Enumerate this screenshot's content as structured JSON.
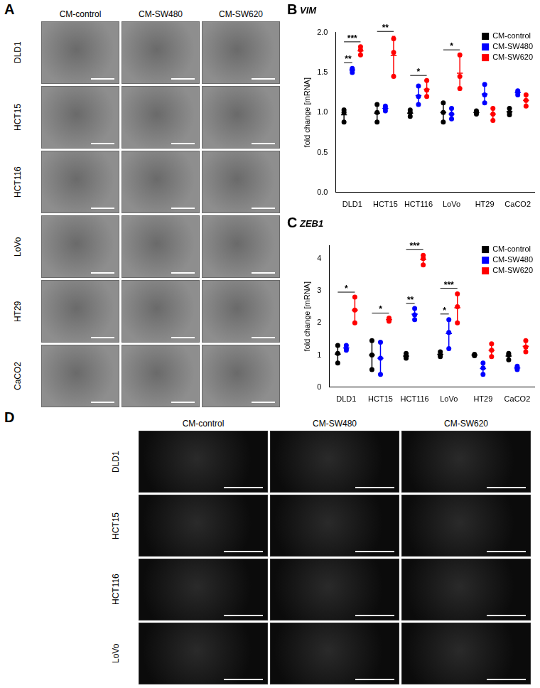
{
  "image_panels": [
    {
      "panel": "A",
      "columns": [
        "CM-control",
        "CM-SW480",
        "CM-SW620"
      ],
      "rows": [
        "DLD1",
        "HCT15",
        "HCT116",
        "LoVo",
        "HT29",
        "CaCO2"
      ]
    },
    {
      "panel": "D",
      "columns": [
        "CM-control",
        "CM-SW480",
        "CM-SW620"
      ],
      "rows": [
        "DLD1",
        "HCT15",
        "HCT116",
        "LoVo"
      ]
    }
  ],
  "chart_data": [
    {
      "panel": "B",
      "type": "scatter",
      "title": "VIM",
      "y_label": "fold change [mRNA]",
      "categories": [
        "DLD1",
        "HCT15",
        "HCT116",
        "LoVo",
        "HT29",
        "CaCO2"
      ],
      "ylim": [
        0,
        2.0
      ],
      "yticks": [
        {
          "value": 0,
          "label": "0.0"
        },
        0.5,
        {
          "value": 1,
          "label": "1.0"
        },
        1.5,
        {
          "value": 2,
          "label": "2.0"
        }
      ],
      "grid": false,
      "legend": "upper right",
      "marker": "circle",
      "series": [
        {
          "name": "CM-control",
          "color": "#000000",
          "values": [
            [
              0.88,
              1.0,
              1.03
            ],
            [
              0.88,
              1.0,
              1.1
            ],
            [
              0.95,
              1.0,
              1.03
            ],
            [
              0.88,
              1.0,
              1.12
            ],
            [
              0.98,
              1.0,
              1.02
            ],
            [
              0.97,
              1.0,
              1.05
            ]
          ],
          "mean": [
            0.97,
            0.99,
            0.99,
            1.0,
            1.0,
            1.01
          ],
          "sd": [
            0.08,
            0.11,
            0.04,
            0.12,
            0.02,
            0.04
          ]
        },
        {
          "name": "CM-SW480",
          "color": "#0000ff",
          "values": [
            [
              1.5,
              1.53,
              1.55
            ],
            [
              1.02,
              1.05,
              1.08
            ],
            [
              1.1,
              1.2,
              1.33
            ],
            [
              0.92,
              0.98,
              1.05
            ],
            [
              1.12,
              1.22,
              1.35
            ],
            [
              1.22,
              1.25,
              1.27
            ]
          ],
          "mean": [
            1.53,
            1.05,
            1.21,
            0.98,
            1.23,
            1.25
          ],
          "sd": [
            0.03,
            0.03,
            0.12,
            0.07,
            0.12,
            0.03
          ]
        },
        {
          "name": "CM-SW620",
          "color": "#ff0000",
          "values": [
            [
              1.72,
              1.78,
              1.82
            ],
            [
              1.45,
              1.75,
              1.92
            ],
            [
              1.2,
              1.28,
              1.4
            ],
            [
              1.3,
              1.45,
              1.72
            ],
            [
              0.9,
              0.98,
              1.05
            ],
            [
              1.08,
              1.15,
              1.22
            ]
          ],
          "mean": [
            1.77,
            1.71,
            1.29,
            1.49,
            0.98,
            1.15
          ],
          "sd": [
            0.05,
            0.24,
            0.1,
            0.21,
            0.08,
            0.07
          ]
        }
      ],
      "significance": [
        {
          "category": "DLD1",
          "pair": [
            "CM-control",
            "CM-SW480"
          ],
          "label": "**"
        },
        {
          "category": "DLD1",
          "pair": [
            "CM-control",
            "CM-SW620"
          ],
          "label": "***"
        },
        {
          "category": "HCT15",
          "pair": [
            "CM-control",
            "CM-SW620"
          ],
          "label": "**"
        },
        {
          "category": "HCT116",
          "pair": [
            "CM-control",
            "CM-SW620"
          ],
          "label": "*"
        },
        {
          "category": "LoVo",
          "pair": [
            "CM-control",
            "CM-SW620"
          ],
          "label": "*"
        }
      ]
    },
    {
      "panel": "C",
      "type": "scatter",
      "title": "ZEB1",
      "y_label": "fold change [mRNA]",
      "categories": [
        "DLD1",
        "HCT15",
        "HCT116",
        "LoVo",
        "HT29",
        "CaCO2"
      ],
      "ylim": [
        0,
        4.4
      ],
      "yticks": [
        0,
        1,
        2,
        3,
        4
      ],
      "grid": false,
      "legend": "upper right",
      "marker": "circle",
      "series": [
        {
          "name": "CM-control",
          "color": "#000000",
          "values": [
            [
              0.75,
              1.05,
              1.3
            ],
            [
              0.55,
              1.0,
              1.45
            ],
            [
              0.9,
              0.97,
              1.05
            ],
            [
              0.95,
              1.0,
              1.1
            ],
            [
              0.98,
              1.0,
              1.02
            ],
            [
              0.85,
              1.0,
              1.05
            ]
          ],
          "mean": [
            1.03,
            1.0,
            0.97,
            1.02,
            1.0,
            0.97
          ],
          "sd": [
            0.28,
            0.45,
            0.08,
            0.08,
            0.02,
            0.1
          ]
        },
        {
          "name": "CM-SW480",
          "color": "#0000ff",
          "values": [
            [
              1.15,
              1.2,
              1.3
            ],
            [
              0.4,
              0.9,
              1.4
            ],
            [
              2.1,
              2.25,
              2.45
            ],
            [
              1.2,
              1.7,
              2.1
            ],
            [
              0.4,
              0.6,
              0.75
            ],
            [
              0.55,
              0.6,
              0.65
            ]
          ],
          "mean": [
            1.22,
            0.9,
            2.27,
            1.67,
            0.58,
            0.6
          ],
          "sd": [
            0.08,
            0.5,
            0.18,
            0.45,
            0.18,
            0.05
          ]
        },
        {
          "name": "CM-SW620",
          "color": "#ff0000",
          "values": [
            [
              2.0,
              2.4,
              2.8
            ],
            [
              2.05,
              2.1,
              2.15
            ],
            [
              3.8,
              4.0,
              4.1
            ],
            [
              2.0,
              2.5,
              2.9
            ],
            [
              0.95,
              1.15,
              1.35
            ],
            [
              1.1,
              1.25,
              1.45
            ]
          ],
          "mean": [
            2.4,
            2.1,
            3.97,
            2.47,
            1.15,
            1.27
          ],
          "sd": [
            0.4,
            0.05,
            0.15,
            0.45,
            0.2,
            0.18
          ]
        }
      ],
      "significance": [
        {
          "category": "DLD1",
          "pair": [
            "CM-control",
            "CM-SW620"
          ],
          "label": "*"
        },
        {
          "category": "HCT15",
          "pair": [
            "CM-control",
            "CM-SW620"
          ],
          "label": "*"
        },
        {
          "category": "HCT116",
          "pair": [
            "CM-control",
            "CM-SW480"
          ],
          "label": "**"
        },
        {
          "category": "HCT116",
          "pair": [
            "CM-control",
            "CM-SW620"
          ],
          "label": "***"
        },
        {
          "category": "LoVo",
          "pair": [
            "CM-control",
            "CM-SW480"
          ],
          "label": "*"
        },
        {
          "category": "LoVo",
          "pair": [
            "CM-control",
            "CM-SW620"
          ],
          "label": "***"
        }
      ]
    }
  ]
}
